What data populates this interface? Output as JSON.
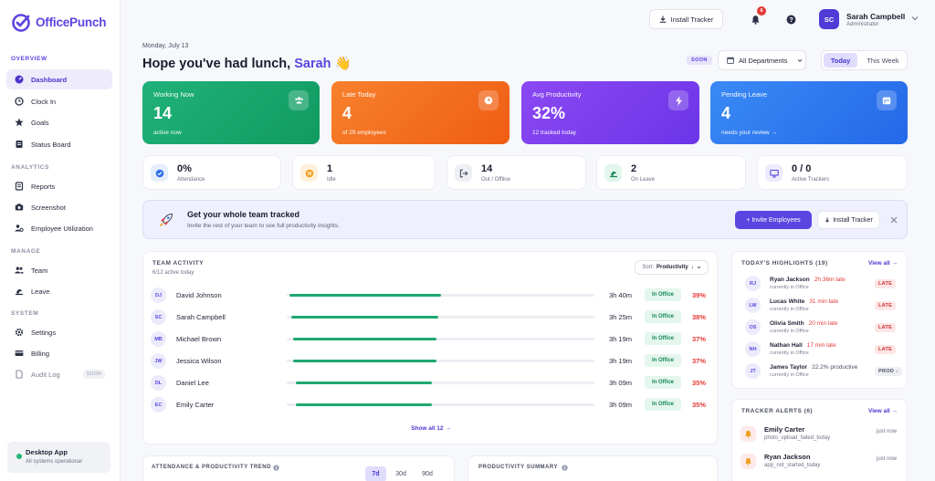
{
  "brand": {
    "name": "OfficePunch"
  },
  "sidebar": {
    "sections": {
      "overview": "OVERVIEW",
      "analytics": "ANALYTICS",
      "manage": "MANAGE",
      "system": "SYSTEM"
    },
    "items": [
      {
        "label": "Dashboard",
        "icon": "dashboard-icon"
      },
      {
        "label": "Clock In",
        "icon": "clock-icon"
      },
      {
        "label": "Goals",
        "icon": "star-icon"
      },
      {
        "label": "Status Board",
        "icon": "board-icon"
      },
      {
        "label": "Reports",
        "icon": "reports-icon"
      },
      {
        "label": "Screenshot",
        "icon": "camera-icon"
      },
      {
        "label": "Employee Utilization",
        "icon": "users-cog-icon"
      },
      {
        "label": "Team",
        "icon": "team-icon"
      },
      {
        "label": "Leave",
        "icon": "leave-icon"
      },
      {
        "label": "Settings",
        "icon": "gear-icon"
      },
      {
        "label": "Billing",
        "icon": "card-icon"
      },
      {
        "label": "Audit Log",
        "icon": "document-icon",
        "badge": "SOON"
      }
    ],
    "desktop": {
      "title": "Desktop App",
      "status": "All systems operational"
    }
  },
  "topbar": {
    "install_label": "Install Tracker",
    "notifications_count": "6",
    "user": {
      "initials": "SC",
      "name": "Sarah Campbell",
      "role": "Administrator"
    }
  },
  "header": {
    "date": "Monday, July 13",
    "greeting": "Hope you've had lunch,",
    "name": "Sarah",
    "emoji": "👋",
    "soon_badge": "SOON",
    "department": "All Departments",
    "range_today": "Today",
    "range_week": "This Week"
  },
  "stats": [
    {
      "label": "Working Now",
      "value": "14",
      "sub": "active now",
      "color": "#17a56b"
    },
    {
      "label": "Late Today",
      "value": "4",
      "sub": "of 29 employees",
      "color": "#f36a1d"
    },
    {
      "label": "Avg Productivity",
      "value": "32%",
      "sub": "12 tracked today",
      "color": "#7a3ff0"
    },
    {
      "label": "Pending Leave",
      "value": "4",
      "sub": "needs your review →",
      "color": "#2f7df0"
    }
  ],
  "mini_stats": [
    {
      "value": "0%",
      "label": "Attendance"
    },
    {
      "value": "1",
      "label": "Idle"
    },
    {
      "value": "14",
      "label": "Out / Offline"
    },
    {
      "value": "2",
      "label": "On Leave"
    },
    {
      "value": "0 / 0",
      "label": "Active Trackers"
    }
  ],
  "banner": {
    "title": "Get your whole team tracked",
    "subtitle": "Invite the rest of your team to see full productivity insights.",
    "invite_label": "+ Invite Employees",
    "install_label": "Install Tracker"
  },
  "team_activity": {
    "title": "TEAM ACTIVITY",
    "subtitle": "6/12 active today",
    "sort_prefix": "Sort:",
    "sort_value": "Productivity",
    "show_all": "Show all 12 →",
    "rows": [
      {
        "initials": "DJ",
        "name": "David Johnson",
        "time": "3h 40m",
        "status": "In Office",
        "pct": "39%",
        "progress": 0.39
      },
      {
        "initials": "SC",
        "name": "Sarah Campbell",
        "time": "3h 25m",
        "status": "In Office",
        "pct": "38%",
        "progress": 0.38
      },
      {
        "initials": "MB",
        "name": "Michael Brown",
        "time": "3h 19m",
        "status": "In Office",
        "pct": "37%",
        "progress": 0.37
      },
      {
        "initials": "JW",
        "name": "Jessica Wilson",
        "time": "3h 19m",
        "status": "In Office",
        "pct": "37%",
        "progress": 0.37
      },
      {
        "initials": "DL",
        "name": "Daniel Lee",
        "time": "3h 09m",
        "status": "In Office",
        "pct": "35%",
        "progress": 0.35
      },
      {
        "initials": "EC",
        "name": "Emily Carter",
        "time": "3h 09m",
        "status": "In Office",
        "pct": "35%",
        "progress": 0.35
      }
    ]
  },
  "highlights": {
    "title": "TODAY'S HIGHLIGHTS",
    "count": "(19)",
    "view_all": "View all →",
    "items": [
      {
        "initials": "RJ",
        "name": "Ryan Jackson",
        "detail": "2h 36m late",
        "sub": "currently in Office",
        "tag": "LATE"
      },
      {
        "initials": "LW",
        "name": "Lucas White",
        "detail": "31 min late",
        "sub": "currently in Office",
        "tag": "LATE"
      },
      {
        "initials": "OS",
        "name": "Olivia Smith",
        "detail": "20 min late",
        "sub": "currently in Office",
        "tag": "LATE"
      },
      {
        "initials": "NH",
        "name": "Nathan Hall",
        "detail": "17 min late",
        "sub": "currently in Office",
        "tag": "LATE"
      },
      {
        "initials": "JT",
        "name": "James Taylor",
        "detail": "22.2% productive",
        "sub": "currently in Office",
        "tag": "PROD ↓"
      }
    ]
  },
  "alerts": {
    "title": "TRACKER ALERTS",
    "count": "(6)",
    "view_all": "View all →",
    "items": [
      {
        "name": "Emily Carter",
        "sub": "photo_upload_failed_today",
        "time": "just now"
      },
      {
        "name": "Ryan Jackson",
        "sub": "app_not_started_today",
        "time": "just now"
      }
    ]
  },
  "trend": {
    "title": "ATTENDANCE & PRODUCTIVITY TREND",
    "ranges": [
      "7d",
      "30d",
      "90d"
    ]
  },
  "summary": {
    "title": "PRODUCTIVITY SUMMARY"
  }
}
